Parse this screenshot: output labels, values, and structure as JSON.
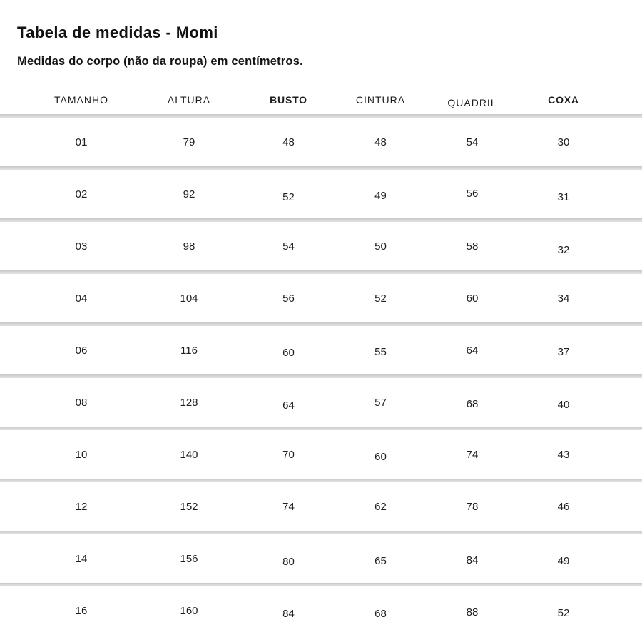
{
  "header": {
    "title": "Tabela de medidas - Momi",
    "subtitle": "Medidas do corpo (não da roupa) em centímetros."
  },
  "table": {
    "columns": [
      "TAMANHO",
      "ALTURA",
      "BUSTO",
      "CINTURA",
      "QUADRIL",
      "COXA"
    ],
    "rows": [
      [
        "01",
        "79",
        "48",
        "48",
        "54",
        "30"
      ],
      [
        "02",
        "92",
        "52",
        "49",
        "56",
        "31"
      ],
      [
        "03",
        "98",
        "54",
        "50",
        "58",
        "32"
      ],
      [
        "04",
        "104",
        "56",
        "52",
        "60",
        "34"
      ],
      [
        "06",
        "116",
        "60",
        "55",
        "64",
        "37"
      ],
      [
        "08",
        "128",
        "64",
        "57",
        "68",
        "40"
      ],
      [
        "10",
        "140",
        "70",
        "60",
        "74",
        "43"
      ],
      [
        "12",
        "152",
        "74",
        "62",
        "78",
        "46"
      ],
      [
        "14",
        "156",
        "80",
        "65",
        "84",
        "49"
      ],
      [
        "16",
        "160",
        "84",
        "68",
        "88",
        "52"
      ]
    ],
    "units": "cm"
  },
  "chart_data": {
    "type": "table",
    "title": "Tabela de medidas - Momi",
    "subtitle": "Medidas do corpo (não da roupa) em centímetros.",
    "columns": [
      "TAMANHO",
      "ALTURA",
      "BUSTO",
      "CINTURA",
      "QUADRIL",
      "COXA"
    ],
    "rows": [
      [
        "01",
        "79",
        "48",
        "48",
        "54",
        "30"
      ],
      [
        "02",
        "92",
        "52",
        "49",
        "56",
        "31"
      ],
      [
        "03",
        "98",
        "54",
        "50",
        "58",
        "32"
      ],
      [
        "04",
        "104",
        "56",
        "52",
        "60",
        "34"
      ],
      [
        "06",
        "116",
        "60",
        "55",
        "64",
        "37"
      ],
      [
        "08",
        "128",
        "64",
        "57",
        "68",
        "40"
      ],
      [
        "10",
        "140",
        "70",
        "60",
        "74",
        "43"
      ],
      [
        "12",
        "152",
        "74",
        "62",
        "78",
        "46"
      ],
      [
        "14",
        "156",
        "80",
        "65",
        "84",
        "49"
      ],
      [
        "16",
        "160",
        "84",
        "68",
        "88",
        "52"
      ]
    ]
  },
  "colors": {
    "background": "#ffffff",
    "text": "#1a1a1a",
    "divider": "#d5d5d5"
  }
}
